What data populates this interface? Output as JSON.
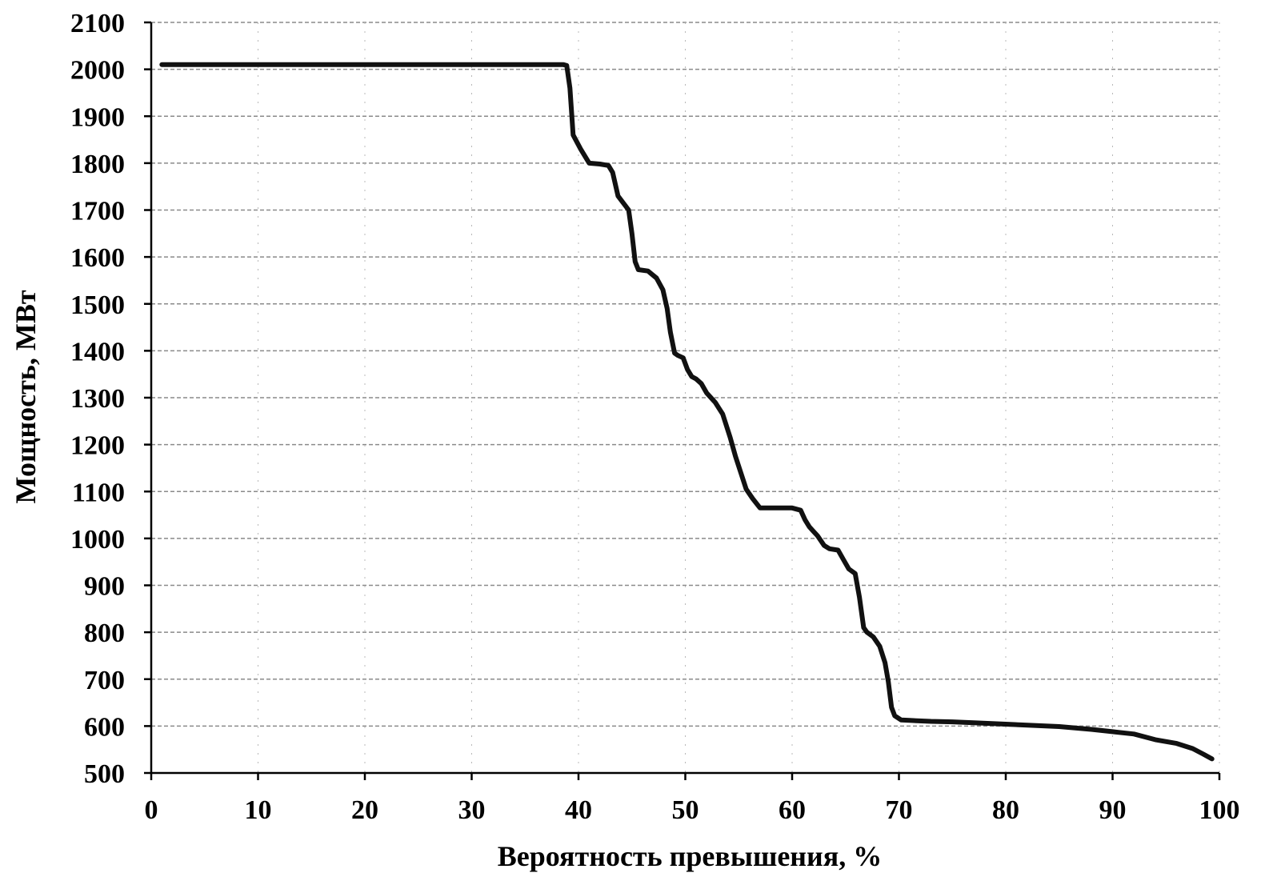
{
  "chart_data": {
    "type": "line",
    "title": "",
    "xlabel": "Вероятность превышения, %",
    "ylabel": "Мощность, МВт",
    "xlim": [
      0,
      100
    ],
    "ylim": [
      500,
      2100
    ],
    "x_ticks": [
      0,
      10,
      20,
      30,
      40,
      50,
      60,
      70,
      80,
      90,
      100
    ],
    "y_ticks": [
      500,
      600,
      700,
      800,
      900,
      1000,
      1100,
      1200,
      1300,
      1400,
      1500,
      1600,
      1700,
      1800,
      1900,
      2000,
      2100
    ],
    "grid": true,
    "legend": "none",
    "line_color": "#111111",
    "series": [
      {
        "x": [
          1.0,
          10,
          20,
          30,
          36,
          38.6,
          38.9,
          39.2,
          39.5,
          40.2,
          41.0,
          42.0,
          42.8,
          43.2,
          43.7,
          44.3,
          44.7,
          45.0,
          45.3,
          45.6,
          46.5,
          47.3,
          47.9,
          48.3,
          48.6,
          49.0,
          49.3,
          49.8,
          50.2,
          50.6,
          51.0,
          51.5,
          52.0,
          52.8,
          53.5,
          54.2,
          54.7,
          55.2,
          55.7,
          56.3,
          57.0,
          58.0,
          59.0,
          60.0,
          60.8,
          61.2,
          61.6,
          62.0,
          62.4,
          63.0,
          63.5,
          64.3,
          64.8,
          65.3,
          65.9,
          66.3,
          66.7,
          67.0,
          67.6,
          68.2,
          68.7,
          69.0,
          69.3,
          69.6,
          70.2,
          71.0,
          73.0,
          75.0,
          77.0,
          80.0,
          85.0,
          88.0,
          90.0,
          92.0,
          94.0,
          96.0,
          97.5,
          98.5,
          99.3
        ],
        "y": [
          2010,
          2010,
          2010,
          2010,
          2010,
          2010,
          2008,
          1960,
          1860,
          1830,
          1800,
          1798,
          1795,
          1780,
          1730,
          1712,
          1700,
          1650,
          1590,
          1573,
          1570,
          1555,
          1530,
          1490,
          1440,
          1395,
          1390,
          1385,
          1360,
          1345,
          1340,
          1330,
          1310,
          1290,
          1265,
          1215,
          1175,
          1140,
          1105,
          1085,
          1065,
          1065,
          1065,
          1065,
          1060,
          1040,
          1025,
          1015,
          1005,
          985,
          978,
          975,
          955,
          935,
          925,
          875,
          810,
          800,
          790,
          770,
          735,
          695,
          640,
          622,
          613,
          612,
          610,
          609,
          607,
          604,
          599,
          593,
          588,
          583,
          571,
          563,
          552,
          540,
          530
        ]
      }
    ]
  }
}
